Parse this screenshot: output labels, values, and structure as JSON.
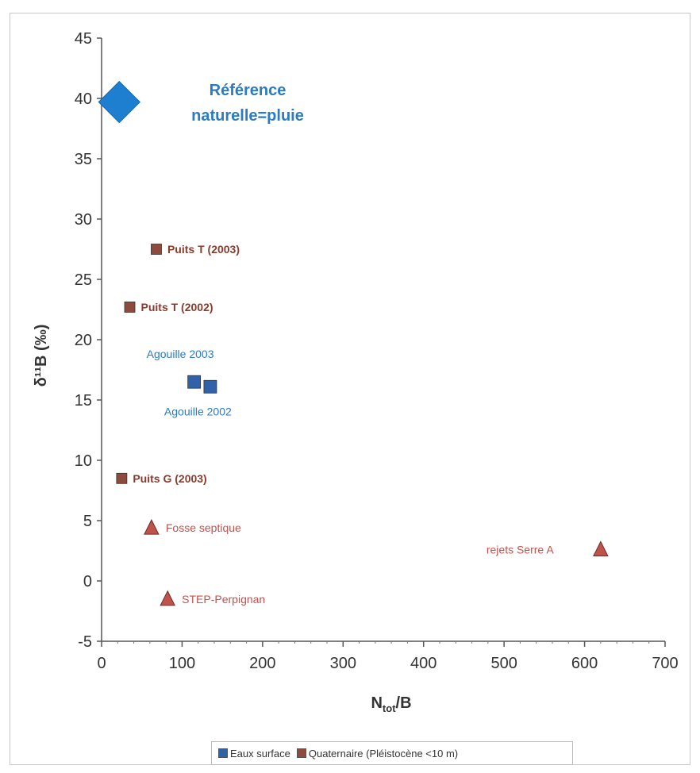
{
  "chart_data": {
    "type": "scatter",
    "title": "",
    "xlabel_main": "N",
    "xlabel_sub": "tot",
    "xlabel_tail": "/B",
    "ylabel": "δ¹¹B (‰)",
    "xlim": [
      0,
      700
    ],
    "ylim": [
      -5,
      45
    ],
    "xticks": [
      0,
      100,
      200,
      300,
      400,
      500,
      600,
      700
    ],
    "yticks": [
      -5,
      0,
      5,
      10,
      15,
      20,
      25,
      30,
      35,
      40,
      45
    ],
    "grid": false,
    "legend_position": "bottom",
    "colors": {
      "eaux_surface": "#2f62a8",
      "quaternaire": "#8e4a3c",
      "reference": "#1e7fd0",
      "rejets": "#c0524c",
      "label_blue": "#2b7bc4",
      "label_brown": "#8a3b2c",
      "label_red": "#c5504c"
    },
    "series": [
      {
        "name": "Eaux surface",
        "marker": "square",
        "color": "#2f62a8",
        "points": [
          {
            "x": 115,
            "y": 16.5,
            "label": "Agouille 2003",
            "label_dx": -60,
            "label_dy": -30
          },
          {
            "x": 135,
            "y": 16.1,
            "label": "Agouille 2002",
            "label_dx": -58,
            "label_dy": 36
          }
        ]
      },
      {
        "name": "Quaternaire (Pléistocène <10 m)",
        "marker": "square",
        "color": "#8e4a3c",
        "points": [
          {
            "x": 68,
            "y": 27.5,
            "label": "Puits T (2003)",
            "label_dx": 14,
            "label_dy": 5
          },
          {
            "x": 35,
            "y": 22.7,
            "label": "Puits T (2002)",
            "label_dx": 14,
            "label_dy": 5
          },
          {
            "x": 25,
            "y": 8.5,
            "label": "Puits G (2003)",
            "label_dx": 14,
            "label_dy": 5
          }
        ]
      },
      {
        "name": "",
        "marker": "triangle",
        "color": "#c0524c",
        "points": [
          {
            "x": 62,
            "y": 4.4,
            "label": "Fosse septique",
            "label_dx": 18,
            "label_dy": 5
          },
          {
            "x": 82,
            "y": -1.5,
            "label": "STEP-Perpignan",
            "label_dx": 18,
            "label_dy": 5
          },
          {
            "x": 620,
            "y": 2.6,
            "label": "rejets Serre A",
            "label_dx": -144,
            "label_dy": 5
          }
        ]
      },
      {
        "name": "",
        "marker": "diamond",
        "color": "#1e7fd0",
        "points": [
          {
            "x": 22,
            "y": 39.7,
            "label": "",
            "label_dx": 0,
            "label_dy": 0
          }
        ]
      }
    ],
    "annotations": {
      "reference_line1": "Référence",
      "reference_line2": "naturelle=pluie"
    },
    "legend": [
      {
        "label": "Eaux surface",
        "color": "#2f62a8"
      },
      {
        "label": "Quaternaire (Pléistocène <10 m)",
        "color": "#8e4a3c"
      }
    ]
  }
}
